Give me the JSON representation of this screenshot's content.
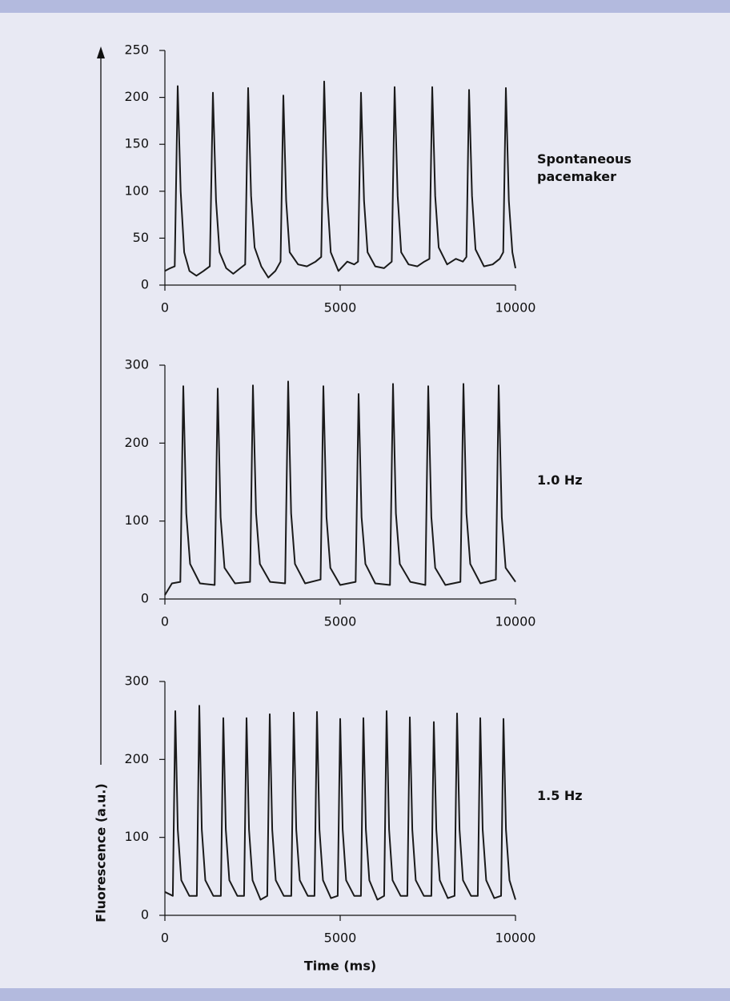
{
  "ylabel": "Fluorescence (a.u.)",
  "xlabel": "Time (ms)",
  "chart_data": [
    {
      "type": "line",
      "annotation": "Spontaneous pacemaker",
      "color": "#1a1a1a",
      "xlim": [
        0,
        10000
      ],
      "xticks": [
        0,
        5000,
        10000
      ],
      "ylim": [
        0,
        250
      ],
      "yticks": [
        0,
        50,
        100,
        150,
        200,
        250
      ],
      "x": [
        0,
        150,
        280,
        365,
        450,
        550,
        700,
        900,
        1100,
        1280,
        1370,
        1460,
        1560,
        1750,
        1950,
        2150,
        2290,
        2374,
        2460,
        2560,
        2750,
        2950,
        3150,
        3300,
        3379,
        3460,
        3560,
        3800,
        4050,
        4300,
        4460,
        4543,
        4630,
        4730,
        4950,
        5200,
        5400,
        5510,
        5594,
        5680,
        5780,
        6000,
        6250,
        6470,
        6553,
        6640,
        6740,
        6950,
        7200,
        7400,
        7545,
        7626,
        7710,
        7810,
        8050,
        8300,
        8500,
        8600,
        8676,
        8760,
        8860,
        9100,
        9350,
        9550,
        9650,
        9726,
        9810,
        9910,
        10000
      ],
      "values": [
        15,
        18,
        20,
        212,
        100,
        35,
        15,
        10,
        15,
        20,
        205,
        90,
        35,
        18,
        12,
        18,
        22,
        210,
        95,
        40,
        20,
        8,
        15,
        25,
        202,
        90,
        35,
        22,
        20,
        25,
        30,
        217,
        95,
        35,
        15,
        25,
        22,
        25,
        205,
        90,
        35,
        20,
        18,
        25,
        211,
        95,
        35,
        22,
        20,
        25,
        28,
        211,
        95,
        40,
        22,
        28,
        25,
        30,
        208,
        95,
        38,
        20,
        22,
        28,
        35,
        210,
        90,
        35,
        18
      ]
    },
    {
      "type": "line",
      "annotation": "1.0 Hz",
      "color": "#1a1a1a",
      "xlim": [
        0,
        10000
      ],
      "xticks": [
        0,
        5000,
        10000
      ],
      "ylim": [
        0,
        300
      ],
      "yticks": [
        0,
        100,
        200,
        300
      ],
      "x": [
        0,
        200,
        440,
        525,
        610,
        720,
        1000,
        1420,
        1507,
        1590,
        1700,
        2000,
        2430,
        2511,
        2600,
        2710,
        3000,
        3430,
        3516,
        3600,
        3710,
        4000,
        4440,
        4521,
        4610,
        4720,
        5000,
        5440,
        5525,
        5610,
        5720,
        6000,
        6420,
        6507,
        6590,
        6700,
        7000,
        7430,
        7511,
        7600,
        7710,
        8000,
        8430,
        8516,
        8600,
        8710,
        9000,
        9440,
        9521,
        9610,
        9720,
        10000
      ],
      "values": [
        5,
        20,
        22,
        273,
        110,
        45,
        20,
        18,
        270,
        105,
        40,
        20,
        22,
        274,
        110,
        45,
        22,
        20,
        279,
        110,
        45,
        20,
        25,
        273,
        105,
        40,
        18,
        22,
        263,
        105,
        45,
        20,
        18,
        276,
        110,
        45,
        22,
        18,
        273,
        105,
        40,
        18,
        22,
        276,
        110,
        45,
        20,
        25,
        274,
        105,
        40,
        22
      ]
    },
    {
      "type": "line",
      "annotation": "1.5 Hz",
      "color": "#1a1a1a",
      "xlim": [
        0,
        10000
      ],
      "xticks": [
        0,
        5000,
        10000
      ],
      "ylim": [
        0,
        300
      ],
      "yticks": [
        0,
        100,
        200,
        300
      ],
      "x": [
        0,
        227,
        297,
        367,
        467,
        697,
        912,
        982,
        1052,
        1152,
        1382,
        1597,
        1667,
        1737,
        1837,
        2067,
        2259,
        2329,
        2399,
        2499,
        2729,
        2921,
        2991,
        3061,
        3161,
        3391,
        3606,
        3676,
        3746,
        3846,
        4076,
        4268,
        4338,
        4408,
        4508,
        4738,
        4930,
        5000,
        5070,
        5170,
        5400,
        5592,
        5662,
        5732,
        5832,
        6062,
        6254,
        6324,
        6394,
        6494,
        6724,
        6916,
        6986,
        7056,
        7156,
        7386,
        7601,
        7671,
        7741,
        7841,
        8071,
        8263,
        8333,
        8403,
        8503,
        8733,
        8925,
        8995,
        9065,
        9165,
        9395,
        9588,
        9658,
        9728,
        9828,
        10000
      ],
      "values": [
        30,
        25,
        262,
        110,
        45,
        25,
        25,
        269,
        110,
        45,
        25,
        25,
        253,
        110,
        45,
        25,
        25,
        253,
        110,
        45,
        20,
        25,
        258,
        110,
        45,
        25,
        25,
        260,
        110,
        45,
        25,
        25,
        261,
        110,
        45,
        22,
        25,
        252,
        110,
        45,
        25,
        25,
        253,
        110,
        45,
        20,
        25,
        262,
        110,
        45,
        25,
        25,
        254,
        110,
        45,
        25,
        25,
        248,
        110,
        45,
        22,
        25,
        259,
        110,
        45,
        25,
        25,
        253,
        110,
        45,
        22,
        25,
        252,
        110,
        45,
        20
      ]
    }
  ]
}
